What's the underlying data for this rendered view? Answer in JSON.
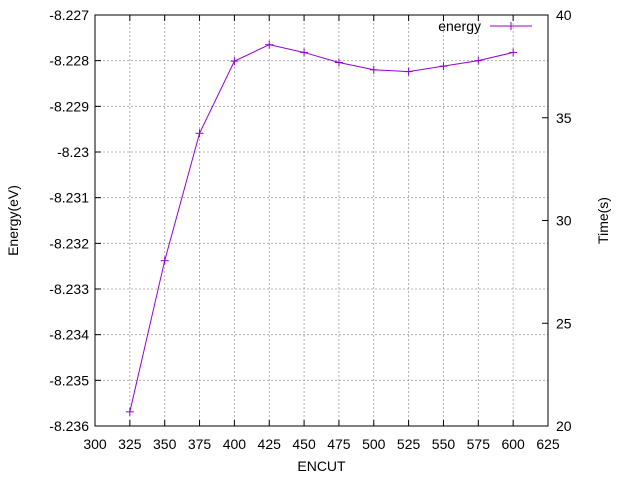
{
  "chart_data": {
    "type": "line",
    "title": "",
    "xlabel": "ENCUT",
    "ylabel": "Energy(eV)",
    "y2label": "Time(s)",
    "xlim": [
      300,
      625
    ],
    "ylim": [
      -8.236,
      -8.227
    ],
    "y2lim": [
      20,
      40
    ],
    "xticks": [
      "300",
      "325",
      "350",
      "375",
      "400",
      "425",
      "450",
      "475",
      "500",
      "525",
      "550",
      "575",
      "600",
      "625"
    ],
    "yticks": [
      "-8.227",
      "-8.228",
      "-8.229",
      "-8.23",
      "-8.231",
      "-8.232",
      "-8.233",
      "-8.234",
      "-8.235",
      "-8.236"
    ],
    "y2ticks": [
      "40",
      "35",
      "30",
      "25",
      "20"
    ],
    "grid": true,
    "legend_position": "top-right",
    "series": [
      {
        "name": "energy",
        "color": "#9400d3",
        "marker": "plus",
        "x": [
          325,
          350,
          375,
          400,
          425,
          450,
          475,
          500,
          525,
          550,
          575,
          600
        ],
        "y": [
          -8.23569,
          -8.23238,
          -8.22959,
          -8.22801,
          -8.22765,
          -8.22782,
          -8.22804,
          -8.2282,
          -8.22824,
          -8.22812,
          -8.228,
          -8.22782
        ]
      }
    ]
  }
}
